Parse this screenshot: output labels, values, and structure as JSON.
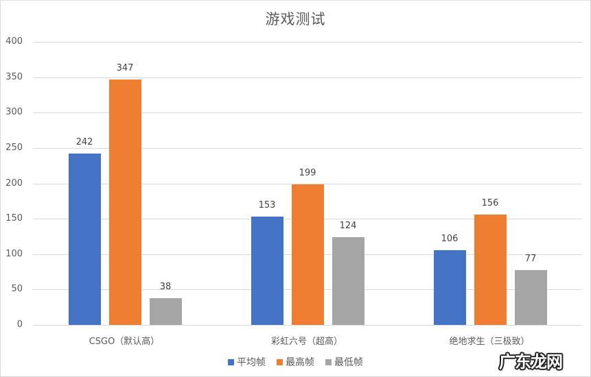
{
  "chart_data": {
    "type": "bar",
    "title": "游戏测试",
    "categories": [
      "CSGO（默认高）",
      "彩虹六号（超高）",
      "绝地求生（三极致）"
    ],
    "series": [
      {
        "name": "平均帧",
        "color": "#4472C4",
        "values": [
          242,
          153,
          106
        ]
      },
      {
        "name": "最高帧",
        "color": "#ED7D31",
        "values": [
          347,
          199,
          156
        ]
      },
      {
        "name": "最低帧",
        "color": "#A5A5A5",
        "values": [
          38,
          124,
          77
        ]
      }
    ],
    "xlabel": "",
    "ylabel": "",
    "ylim": [
      0,
      400
    ],
    "yticks": [
      0,
      50,
      100,
      150,
      200,
      250,
      300,
      350,
      400
    ],
    "grid": true,
    "legend_position": "bottom"
  },
  "watermark": "广东龙网"
}
